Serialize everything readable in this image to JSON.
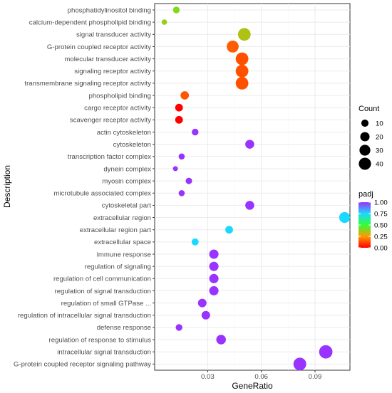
{
  "chart_data": {
    "type": "scatter",
    "xlabel": "GeneRatio",
    "ylabel": "Description",
    "x_ticks": [
      "0.03",
      "0.06",
      "0.09"
    ],
    "x_tick_values": [
      0.03,
      0.06,
      0.09
    ],
    "xlim": [
      0.0004,
      0.1095
    ],
    "grid": true,
    "legend_position": "right",
    "size_legend": {
      "title": "Count",
      "labels": [
        "10",
        "20",
        "30",
        "40"
      ],
      "values": [
        10,
        20,
        30,
        40
      ]
    },
    "color_legend": {
      "title": "padj",
      "labels": [
        "1.00",
        "0.75",
        "0.50",
        "0.25",
        "0.00"
      ],
      "values": [
        1.0,
        0.75,
        0.5,
        0.25,
        0.0
      ],
      "colors": [
        "#9933ff",
        "#1ad9ff",
        "#33ff33",
        "#ff9900",
        "#ff0000"
      ]
    },
    "points": [
      {
        "label": "phosphatidylinositol binding",
        "x": 0.0125,
        "count": 8,
        "padj": 0.4
      },
      {
        "label": "calcium-dependent phospholipid binding",
        "x": 0.0058,
        "count": 4,
        "padj": 0.38
      },
      {
        "label": "signal transducer activity",
        "x": 0.0505,
        "count": 44,
        "padj": 0.35
      },
      {
        "label": "G-protein coupled receptor activity",
        "x": 0.044,
        "count": 38,
        "padj": 0.15
      },
      {
        "label": "molecular transducer activity",
        "x": 0.0492,
        "count": 44,
        "padj": 0.13
      },
      {
        "label": "signaling receptor activity",
        "x": 0.0492,
        "count": 44,
        "padj": 0.13
      },
      {
        "label": "transmembrane signaling receptor activity",
        "x": 0.0492,
        "count": 44,
        "padj": 0.13
      },
      {
        "label": "phospholipid binding",
        "x": 0.0172,
        "count": 15,
        "padj": 0.14
      },
      {
        "label": "cargo receptor activity",
        "x": 0.014,
        "count": 12,
        "padj": 0.0
      },
      {
        "label": "scavenger receptor activity",
        "x": 0.014,
        "count": 12,
        "padj": 0.0
      },
      {
        "label": "actin cytoskeleton",
        "x": 0.023,
        "count": 8,
        "padj": 1.0
      },
      {
        "label": "cytoskeleton",
        "x": 0.0535,
        "count": 18,
        "padj": 1.0
      },
      {
        "label": "transcription factor complex",
        "x": 0.0155,
        "count": 6,
        "padj": 1.0
      },
      {
        "label": "dynein complex",
        "x": 0.012,
        "count": 3,
        "padj": 1.0
      },
      {
        "label": "myosin complex",
        "x": 0.0195,
        "count": 7,
        "padj": 1.0
      },
      {
        "label": "microtubule associated complex",
        "x": 0.0155,
        "count": 6,
        "padj": 1.0
      },
      {
        "label": "cytoskeletal part",
        "x": 0.0535,
        "count": 18,
        "padj": 1.0
      },
      {
        "label": "extracellular region",
        "x": 0.1065,
        "count": 30,
        "padj": 0.75
      },
      {
        "label": "extracellular region part",
        "x": 0.042,
        "count": 12,
        "padj": 0.75
      },
      {
        "label": "extracellular space",
        "x": 0.023,
        "count": 9,
        "padj": 0.75
      },
      {
        "label": "immune response",
        "x": 0.0335,
        "count": 20,
        "padj": 1.0
      },
      {
        "label": "regulation of signaling",
        "x": 0.0335,
        "count": 20,
        "padj": 1.0
      },
      {
        "label": "regulation of cell communication",
        "x": 0.0335,
        "count": 20,
        "padj": 1.0
      },
      {
        "label": "regulation of signal transduction",
        "x": 0.0335,
        "count": 20,
        "padj": 1.0
      },
      {
        "label": "regulation of small GTPase ...",
        "x": 0.027,
        "count": 16,
        "padj": 1.0
      },
      {
        "label": "regulation of intracellular signal transduction",
        "x": 0.029,
        "count": 16,
        "padj": 1.0
      },
      {
        "label": "defense response",
        "x": 0.014,
        "count": 8,
        "padj": 1.0
      },
      {
        "label": "regulation of response to stimulus",
        "x": 0.0375,
        "count": 22,
        "padj": 1.0
      },
      {
        "label": "intracellular signal transduction",
        "x": 0.096,
        "count": 50,
        "padj": 1.0
      },
      {
        "label": "G-protein coupled receptor signaling pathway",
        "x": 0.0815,
        "count": 45,
        "padj": 1.0
      }
    ]
  }
}
